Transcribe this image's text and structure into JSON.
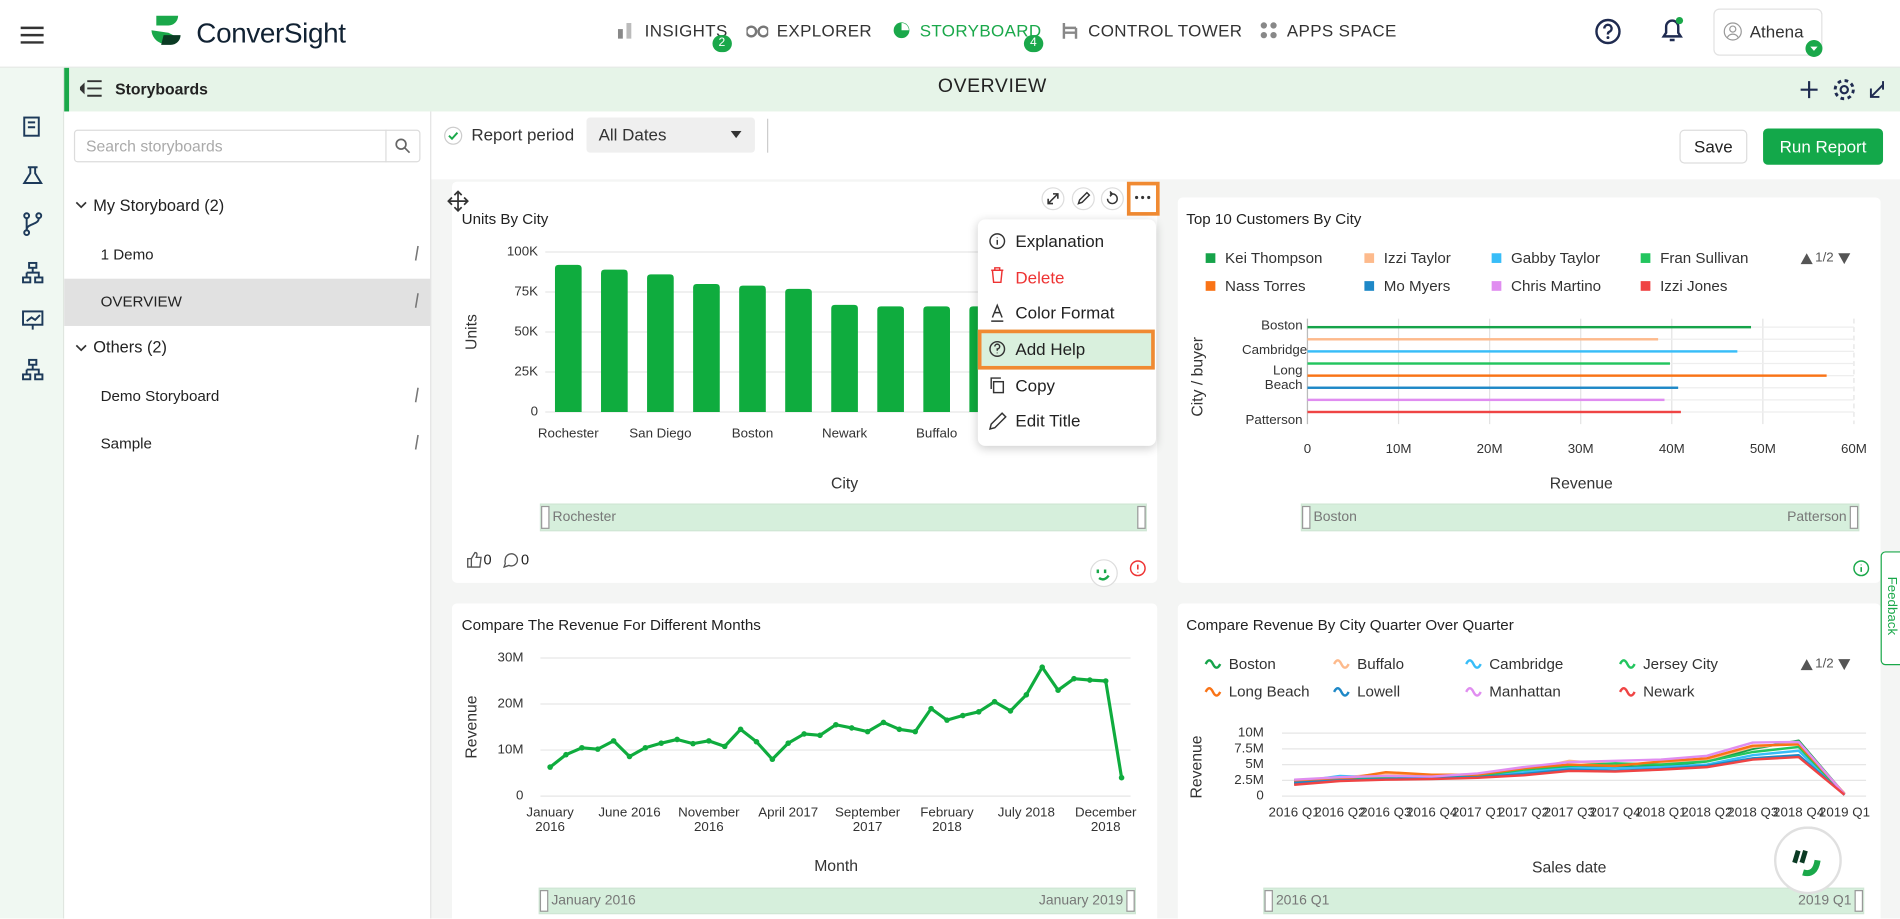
{
  "header": {
    "brand": "ConverSight",
    "nav": [
      {
        "label": "INSIGHTS",
        "badge": 2
      },
      {
        "label": "EXPLORER"
      },
      {
        "label": "STORYBOARD",
        "badge": 4
      },
      {
        "label": "CONTROL TOWER"
      },
      {
        "label": "APPS SPACE"
      }
    ],
    "user": "Athena"
  },
  "subheader": {
    "section": "Storyboards",
    "title": "OVERVIEW"
  },
  "sidebar": {
    "search_placeholder": "Search storyboards",
    "groups": [
      {
        "label": "My Storyboard (2)",
        "items": [
          "1 Demo",
          "OVERVIEW"
        ]
      },
      {
        "label": "Others (2)",
        "items": [
          "Demo Storyboard",
          "Sample"
        ]
      }
    ]
  },
  "toolbar": {
    "report_period": "Report period",
    "date_filter": "All Dates",
    "save": "Save",
    "run": "Run Report"
  },
  "menu": [
    "Explanation",
    "Delete",
    "Color Format",
    "Add Help",
    "Copy",
    "Edit Title"
  ],
  "reactions": {
    "likes": 0,
    "comments": 0
  },
  "feedback": "Feedback",
  "chart_data": [
    {
      "type": "bar",
      "title": "Units By City",
      "xlabel": "City",
      "ylabel": "Units",
      "color": "#0fac3e",
      "categories": [
        "Rochester",
        null,
        "San Diego",
        null,
        "Boston",
        null,
        "Newark",
        null,
        "Buffalo",
        null
      ],
      "values": [
        92000,
        89000,
        86000,
        80000,
        79000,
        77000,
        67000,
        66000,
        66000,
        66000
      ],
      "ylim": [
        0,
        100000
      ],
      "yticks": [
        0,
        {
          "value": 25000,
          "label": "25K"
        },
        {
          "value": 50000,
          "label": "50K"
        },
        {
          "value": 75000,
          "label": "75K"
        },
        {
          "value": 100000,
          "label": "100K"
        }
      ],
      "grid": true,
      "slider": [
        "Rochester"
      ]
    },
    {
      "type": "hbar",
      "title": "Top 10 Customers By City",
      "xlabel": "Revenue",
      "ylabel": "City / buyer",
      "legend_page": "1/2",
      "categories": [
        "Boston",
        "Cambridge",
        "Long Beach",
        "Patterson"
      ],
      "series": [
        {
          "name": "Kei Thompson",
          "color": "#16a34a",
          "value": 48700000
        },
        {
          "name": "Izzi Taylor",
          "color": "#fdba8c",
          "value": 38500000
        },
        {
          "name": "Gabby Taylor",
          "color": "#38bdf8",
          "value": 47200000
        },
        {
          "name": "Fran Sullivan",
          "color": "#22c55e",
          "value": 39800000
        },
        {
          "name": "Nass Torres",
          "color": "#f97316",
          "value": 57000000
        },
        {
          "name": "Mo Myers",
          "color": "#1e88c7",
          "value": 40700000
        },
        {
          "name": "Chris Martino",
          "color": "#e08df0",
          "value": 39200000
        },
        {
          "name": "Izzi Jones",
          "color": "#ef4444",
          "value": 41000000
        }
      ],
      "xlim": [
        0,
        60000000
      ],
      "xticks": [
        0,
        {
          "value": 10000000,
          "label": "10M"
        },
        {
          "value": 20000000,
          "label": "20M"
        },
        {
          "value": 30000000,
          "label": "30M"
        },
        {
          "value": 40000000,
          "label": "40M"
        },
        {
          "value": 50000000,
          "label": "50M"
        },
        {
          "value": 60000000,
          "label": "60M"
        }
      ],
      "grid": true,
      "slider": [
        "Boston",
        "Patterson"
      ]
    },
    {
      "type": "line",
      "title": "Compare The Revenue For Different Months",
      "xlabel": "Month",
      "ylabel": "Revenue",
      "color": "#0fac3e",
      "categories": [
        "January 2016",
        null,
        null,
        null,
        null,
        "June 2016",
        null,
        null,
        null,
        null,
        "November 2016",
        null,
        null,
        null,
        null,
        "April 2017",
        null,
        null,
        null,
        null,
        "September 2017",
        null,
        null,
        null,
        null,
        "February 2018",
        null,
        null,
        null,
        null,
        "July 2018",
        null,
        null,
        null,
        null,
        "December 2018",
        null
      ],
      "values": [
        6300000,
        9000000,
        10500000,
        10200000,
        12000000,
        8600000,
        10500000,
        11500000,
        12300000,
        11400000,
        12000000,
        10800000,
        14500000,
        11800000,
        8000000,
        11500000,
        13500000,
        13200000,
        15500000,
        14800000,
        14000000,
        16000000,
        14500000,
        14000000,
        19000000,
        16500000,
        17500000,
        18300000,
        20500000,
        18500000,
        22000000,
        28000000,
        23000000,
        25500000,
        25200000,
        25000000,
        4000000
      ],
      "ylim": [
        0,
        30000000
      ],
      "yticks": [
        0,
        {
          "value": 10000000,
          "label": "10M"
        },
        {
          "value": 20000000,
          "label": "20M"
        },
        {
          "value": 30000000,
          "label": "30M"
        }
      ],
      "grid": true,
      "slider": [
        "January 2016",
        "January 2019"
      ]
    },
    {
      "type": "line",
      "title": "Compare Revenue By City Quarter Over Quarter",
      "xlabel": "Sales date",
      "ylabel": "Revenue",
      "legend_page": "1/2",
      "categories": [
        "2016 Q1",
        "2016 Q2",
        "2016 Q3",
        "2016 Q4",
        "2017 Q1",
        "2017 Q2",
        "2017 Q3",
        "2017 Q4",
        "2018 Q1",
        "2018 Q2",
        "2018 Q3",
        "2018 Q4",
        "2019 Q1"
      ],
      "series": [
        {
          "name": "Boston",
          "color": "#16a34a",
          "values": [
            2000000,
            2800000,
            3000000,
            2800000,
            3000000,
            3600000,
            4800000,
            4600000,
            4800000,
            5500000,
            7500000,
            8800000,
            300000
          ]
        },
        {
          "name": "Buffalo",
          "color": "#fdba8c",
          "values": [
            2400000,
            2900000,
            3600000,
            3300000,
            3500000,
            4000000,
            5600000,
            5000000,
            5200000,
            5800000,
            7800000,
            8400000,
            300000
          ]
        },
        {
          "name": "Cambridge",
          "color": "#38bdf8",
          "values": [
            2200000,
            3200000,
            2900000,
            3000000,
            3300000,
            3800000,
            4500000,
            4400000,
            4600000,
            5000000,
            6500000,
            7200000,
            200000
          ]
        },
        {
          "name": "Jersey City",
          "color": "#22c55e",
          "values": [
            2500000,
            2700000,
            3000000,
            3200000,
            3200000,
            4200000,
            4800000,
            5200000,
            5000000,
            5500000,
            7000000,
            7800000,
            300000
          ]
        },
        {
          "name": "Long Beach",
          "color": "#f97316",
          "values": [
            2300000,
            2600000,
            3800000,
            3400000,
            3400000,
            4400000,
            5000000,
            4800000,
            5500000,
            6000000,
            8000000,
            8200000,
            400000
          ]
        },
        {
          "name": "Lowell",
          "color": "#1e88c7",
          "values": [
            2100000,
            2500000,
            2700000,
            2900000,
            3000000,
            3500000,
            4200000,
            4000000,
            4300000,
            4800000,
            6000000,
            6500000,
            200000
          ]
        },
        {
          "name": "Manhattan",
          "color": "#e08df0",
          "values": [
            2600000,
            3000000,
            3200000,
            3100000,
            3600000,
            4600000,
            5400000,
            5600000,
            5800000,
            6400000,
            8500000,
            8600000,
            300000
          ]
        },
        {
          "name": "Newark",
          "color": "#ef4444",
          "values": [
            1800000,
            2400000,
            2600000,
            2700000,
            2900000,
            3300000,
            4000000,
            3900000,
            4200000,
            4600000,
            5800000,
            6200000,
            200000
          ]
        }
      ],
      "ylim": [
        0,
        10000000
      ],
      "yticks": [
        0,
        {
          "value": 2500000,
          "label": "2.5M"
        },
        {
          "value": 5000000,
          "label": "5M"
        },
        {
          "value": 7500000,
          "label": "7.5M"
        },
        {
          "value": 10000000,
          "label": "10M"
        }
      ],
      "grid": true,
      "slider": [
        "2016 Q1",
        "2019 Q1"
      ]
    }
  ]
}
